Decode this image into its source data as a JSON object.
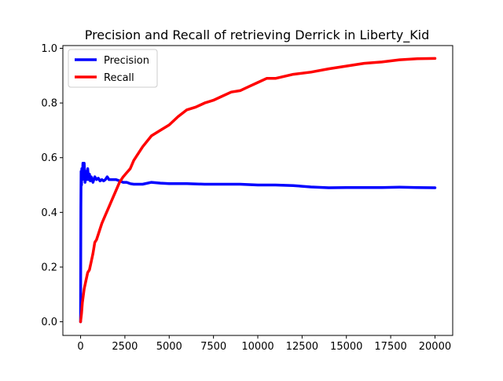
{
  "chart_data": {
    "type": "line",
    "title": "Precision and Recall of retrieving Derrick in Liberty_Kid",
    "xlabel": "",
    "ylabel": "",
    "xlim": [
      -1000,
      21000
    ],
    "ylim": [
      -0.05,
      1.01
    ],
    "x_ticks": [
      0,
      2500,
      5000,
      7500,
      10000,
      12500,
      15000,
      17500,
      20000
    ],
    "x_tick_labels": [
      "0",
      "2500",
      "5000",
      "7500",
      "10000",
      "12500",
      "15000",
      "17500",
      "20000"
    ],
    "y_ticks": [
      0.0,
      0.2,
      0.4,
      0.6,
      0.8,
      1.0
    ],
    "y_tick_labels": [
      "0.0",
      "0.2",
      "0.4",
      "0.6",
      "0.8",
      "1.0"
    ],
    "grid": false,
    "legend": {
      "placement": "top-left"
    },
    "series": [
      {
        "name": "Precision",
        "color": "#0000ff",
        "x": [
          0,
          15,
          30,
          50,
          70,
          100,
          130,
          160,
          200,
          250,
          300,
          350,
          400,
          450,
          500,
          550,
          600,
          700,
          800,
          900,
          1000,
          1100,
          1200,
          1300,
          1400,
          1500,
          1600,
          1700,
          1800,
          2000,
          2200,
          2400,
          2600,
          2800,
          3000,
          3500,
          4000,
          4500,
          5000,
          6000,
          7000,
          8000,
          9000,
          10000,
          11000,
          12000,
          13000,
          14000,
          15000,
          16000,
          17000,
          18000,
          19000,
          20000
        ],
        "y": [
          0.0,
          0.42,
          0.55,
          0.5,
          0.56,
          0.52,
          0.58,
          0.53,
          0.58,
          0.51,
          0.55,
          0.52,
          0.56,
          0.52,
          0.54,
          0.515,
          0.53,
          0.51,
          0.53,
          0.52,
          0.525,
          0.515,
          0.52,
          0.515,
          0.52,
          0.53,
          0.52,
          0.52,
          0.52,
          0.52,
          0.515,
          0.51,
          0.51,
          0.505,
          0.503,
          0.503,
          0.51,
          0.507,
          0.505,
          0.505,
          0.503,
          0.503,
          0.503,
          0.5,
          0.5,
          0.498,
          0.493,
          0.49,
          0.491,
          0.491,
          0.491,
          0.492,
          0.491,
          0.49
        ]
      },
      {
        "name": "Recall",
        "color": "#ff0000",
        "x": [
          0,
          50,
          100,
          200,
          300,
          400,
          500,
          600,
          700,
          800,
          900,
          1000,
          1200,
          1400,
          1600,
          1800,
          2000,
          2200,
          2400,
          2600,
          2800,
          3000,
          3500,
          4000,
          4500,
          5000,
          5500,
          6000,
          6500,
          7000,
          7500,
          8000,
          8500,
          9000,
          9500,
          10000,
          10500,
          11000,
          12000,
          13000,
          14000,
          15000,
          16000,
          17000,
          18000,
          19000,
          20000
        ],
        "y": [
          0.0,
          0.03,
          0.07,
          0.12,
          0.15,
          0.18,
          0.19,
          0.22,
          0.25,
          0.29,
          0.3,
          0.32,
          0.36,
          0.39,
          0.42,
          0.45,
          0.48,
          0.51,
          0.53,
          0.545,
          0.56,
          0.59,
          0.64,
          0.68,
          0.7,
          0.72,
          0.75,
          0.775,
          0.785,
          0.8,
          0.81,
          0.825,
          0.84,
          0.845,
          0.86,
          0.875,
          0.89,
          0.89,
          0.905,
          0.913,
          0.925,
          0.935,
          0.945,
          0.95,
          0.958,
          0.962,
          0.963
        ]
      }
    ]
  }
}
